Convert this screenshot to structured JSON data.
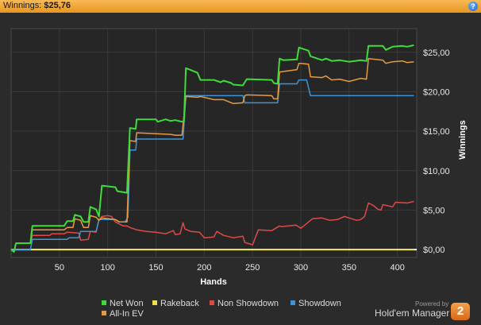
{
  "header": {
    "label": "Winnings:",
    "value": "$25,76",
    "help_glyph": "?"
  },
  "branding": {
    "powered_by": "Powered by",
    "product": "Hold'em Manager",
    "logo_text": "2"
  },
  "chart_data": {
    "type": "line",
    "title": "",
    "xlabel": "Hands",
    "ylabel": "Winnings",
    "xlim": [
      0,
      420
    ],
    "ylim": [
      -1,
      28
    ],
    "x_ticks": [
      50,
      100,
      150,
      200,
      250,
      300,
      350,
      400
    ],
    "y_ticks": [
      0,
      5,
      10,
      15,
      20,
      25
    ],
    "y_tick_labels": [
      "$0,00",
      "$5,00",
      "$10,00",
      "$15,00",
      "$20,00",
      "$25,00"
    ],
    "y_axis_side": "right",
    "grid": true,
    "legend_position": "bottom",
    "series": [
      {
        "name": "Net Won",
        "color": "#3ddc3a",
        "points": [
          [
            0,
            0
          ],
          [
            3,
            -0.3
          ],
          [
            5,
            0.8
          ],
          [
            20,
            0.8
          ],
          [
            22,
            3.0
          ],
          [
            55,
            3.0
          ],
          [
            58,
            3.6
          ],
          [
            64,
            3.6
          ],
          [
            66,
            4.4
          ],
          [
            72,
            4.2
          ],
          [
            75,
            3.5
          ],
          [
            80,
            3.5
          ],
          [
            82,
            5.4
          ],
          [
            88,
            5.1
          ],
          [
            91,
            4.2
          ],
          [
            94,
            8.1
          ],
          [
            108,
            7.9
          ],
          [
            110,
            7.4
          ],
          [
            120,
            7.2
          ],
          [
            123,
            15.4
          ],
          [
            129,
            15.3
          ],
          [
            130,
            16.5
          ],
          [
            150,
            16.5
          ],
          [
            152,
            16.2
          ],
          [
            160,
            16.5
          ],
          [
            165,
            16.3
          ],
          [
            170,
            16.4
          ],
          [
            177,
            16.2
          ],
          [
            179,
            16.3
          ],
          [
            181,
            23.0
          ],
          [
            193,
            22.4
          ],
          [
            196,
            21.5
          ],
          [
            210,
            21.5
          ],
          [
            217,
            21.2
          ],
          [
            220,
            21.4
          ],
          [
            228,
            21.1
          ],
          [
            230,
            20.9
          ],
          [
            240,
            20.8
          ],
          [
            242,
            21.2
          ],
          [
            244,
            21.6
          ],
          [
            270,
            21.5
          ],
          [
            272,
            21.1
          ],
          [
            276,
            21.0
          ],
          [
            278,
            24.2
          ],
          [
            282,
            24.0
          ],
          [
            296,
            24.1
          ],
          [
            298,
            25.6
          ],
          [
            308,
            25.2
          ],
          [
            310,
            24.5
          ],
          [
            322,
            24.0
          ],
          [
            326,
            24.2
          ],
          [
            332,
            23.9
          ],
          [
            340,
            24.0
          ],
          [
            350,
            23.8
          ],
          [
            362,
            24.0
          ],
          [
            368,
            23.9
          ],
          [
            370,
            25.8
          ],
          [
            385,
            25.8
          ],
          [
            388,
            25.3
          ],
          [
            395,
            25.7
          ],
          [
            405,
            25.8
          ],
          [
            410,
            25.7
          ],
          [
            417,
            25.9
          ]
        ]
      },
      {
        "name": "Rakeback",
        "color": "#e8e04a",
        "points": [
          [
            0,
            0
          ],
          [
            417,
            0
          ]
        ]
      },
      {
        "name": "Non Showdown",
        "color": "#e04848",
        "points": [
          [
            0,
            0
          ],
          [
            3,
            -0.3
          ],
          [
            5,
            0.8
          ],
          [
            20,
            0.8
          ],
          [
            22,
            1.8
          ],
          [
            40,
            1.8
          ],
          [
            42,
            2.0
          ],
          [
            55,
            2.0
          ],
          [
            58,
            2.2
          ],
          [
            70,
            2.1
          ],
          [
            72,
            1.2
          ],
          [
            80,
            1.3
          ],
          [
            82,
            2.3
          ],
          [
            88,
            2.2
          ],
          [
            91,
            3.8
          ],
          [
            94,
            4.2
          ],
          [
            100,
            4.3
          ],
          [
            104,
            4.2
          ],
          [
            108,
            3.5
          ],
          [
            116,
            3.0
          ],
          [
            120,
            3.0
          ],
          [
            123,
            2.8
          ],
          [
            130,
            2.5
          ],
          [
            140,
            2.3
          ],
          [
            150,
            2.2
          ],
          [
            160,
            2.0
          ],
          [
            168,
            2.4
          ],
          [
            170,
            1.9
          ],
          [
            175,
            2.0
          ],
          [
            178,
            3.4
          ],
          [
            180,
            2.6
          ],
          [
            186,
            2.3
          ],
          [
            195,
            2.2
          ],
          [
            200,
            1.5
          ],
          [
            210,
            1.6
          ],
          [
            213,
            2.3
          ],
          [
            220,
            1.8
          ],
          [
            230,
            1.5
          ],
          [
            240,
            1.7
          ],
          [
            242,
            0.9
          ],
          [
            250,
            0.6
          ],
          [
            256,
            2.5
          ],
          [
            270,
            2.4
          ],
          [
            278,
            3.0
          ],
          [
            280,
            2.9
          ],
          [
            295,
            3.1
          ],
          [
            300,
            2.7
          ],
          [
            305,
            3.2
          ],
          [
            312,
            3.9
          ],
          [
            322,
            4.0
          ],
          [
            330,
            3.7
          ],
          [
            338,
            3.8
          ],
          [
            345,
            4.2
          ],
          [
            350,
            4.0
          ],
          [
            358,
            3.7
          ],
          [
            362,
            3.8
          ],
          [
            366,
            4.2
          ],
          [
            370,
            5.9
          ],
          [
            375,
            5.6
          ],
          [
            380,
            5.1
          ],
          [
            383,
            5.0
          ],
          [
            385,
            5.7
          ],
          [
            395,
            5.4
          ],
          [
            398,
            6.0
          ],
          [
            410,
            5.9
          ],
          [
            417,
            6.1
          ]
        ]
      },
      {
        "name": "Showdown",
        "color": "#3b95dc",
        "points": [
          [
            0,
            0
          ],
          [
            20,
            0
          ],
          [
            22,
            1.3
          ],
          [
            58,
            1.3
          ],
          [
            60,
            1.5
          ],
          [
            70,
            1.5
          ],
          [
            72,
            2.3
          ],
          [
            88,
            2.3
          ],
          [
            91,
            3.8
          ],
          [
            108,
            3.8
          ],
          [
            112,
            3.5
          ],
          [
            118,
            3.5
          ],
          [
            121,
            4.1
          ],
          [
            123,
            12.6
          ],
          [
            129,
            12.6
          ],
          [
            130,
            14.0
          ],
          [
            178,
            14.0
          ],
          [
            181,
            19.5
          ],
          [
            240,
            19.5
          ],
          [
            242,
            18.6
          ],
          [
            276,
            18.6
          ],
          [
            278,
            21.0
          ],
          [
            296,
            21.0
          ],
          [
            298,
            21.5
          ],
          [
            306,
            21.5
          ],
          [
            310,
            19.5
          ],
          [
            417,
            19.5
          ]
        ]
      },
      {
        "name": "All-In EV",
        "color": "#e89a40",
        "points": [
          [
            0,
            0
          ],
          [
            3,
            -0.3
          ],
          [
            5,
            0.8
          ],
          [
            20,
            0.8
          ],
          [
            22,
            2.5
          ],
          [
            55,
            2.5
          ],
          [
            58,
            2.8
          ],
          [
            64,
            2.8
          ],
          [
            66,
            3.9
          ],
          [
            72,
            3.7
          ],
          [
            75,
            2.8
          ],
          [
            80,
            2.8
          ],
          [
            82,
            4.3
          ],
          [
            88,
            4.1
          ],
          [
            91,
            3.7
          ],
          [
            94,
            4.0
          ],
          [
            108,
            3.8
          ],
          [
            112,
            3.5
          ],
          [
            120,
            3.5
          ],
          [
            123,
            13.8
          ],
          [
            129,
            13.7
          ],
          [
            130,
            14.8
          ],
          [
            165,
            14.6
          ],
          [
            170,
            14.5
          ],
          [
            177,
            14.5
          ],
          [
            181,
            19.4
          ],
          [
            193,
            19.3
          ],
          [
            196,
            19.4
          ],
          [
            210,
            19.0
          ],
          [
            220,
            19.0
          ],
          [
            230,
            18.5
          ],
          [
            240,
            18.6
          ],
          [
            242,
            19.5
          ],
          [
            244,
            19.6
          ],
          [
            270,
            19.5
          ],
          [
            272,
            19.1
          ],
          [
            276,
            19.1
          ],
          [
            278,
            22.5
          ],
          [
            296,
            22.8
          ],
          [
            298,
            23.6
          ],
          [
            308,
            23.5
          ],
          [
            310,
            21.9
          ],
          [
            322,
            21.8
          ],
          [
            326,
            22.0
          ],
          [
            332,
            21.5
          ],
          [
            340,
            21.6
          ],
          [
            350,
            21.3
          ],
          [
            362,
            21.7
          ],
          [
            368,
            21.6
          ],
          [
            370,
            24.2
          ],
          [
            385,
            24.0
          ],
          [
            388,
            23.6
          ],
          [
            395,
            23.8
          ],
          [
            405,
            23.9
          ],
          [
            410,
            23.7
          ],
          [
            417,
            23.8
          ]
        ]
      }
    ],
    "legend": [
      [
        "Net Won",
        "Rakeback",
        "Non Showdown",
        "Showdown"
      ],
      [
        "All-In EV"
      ]
    ]
  }
}
